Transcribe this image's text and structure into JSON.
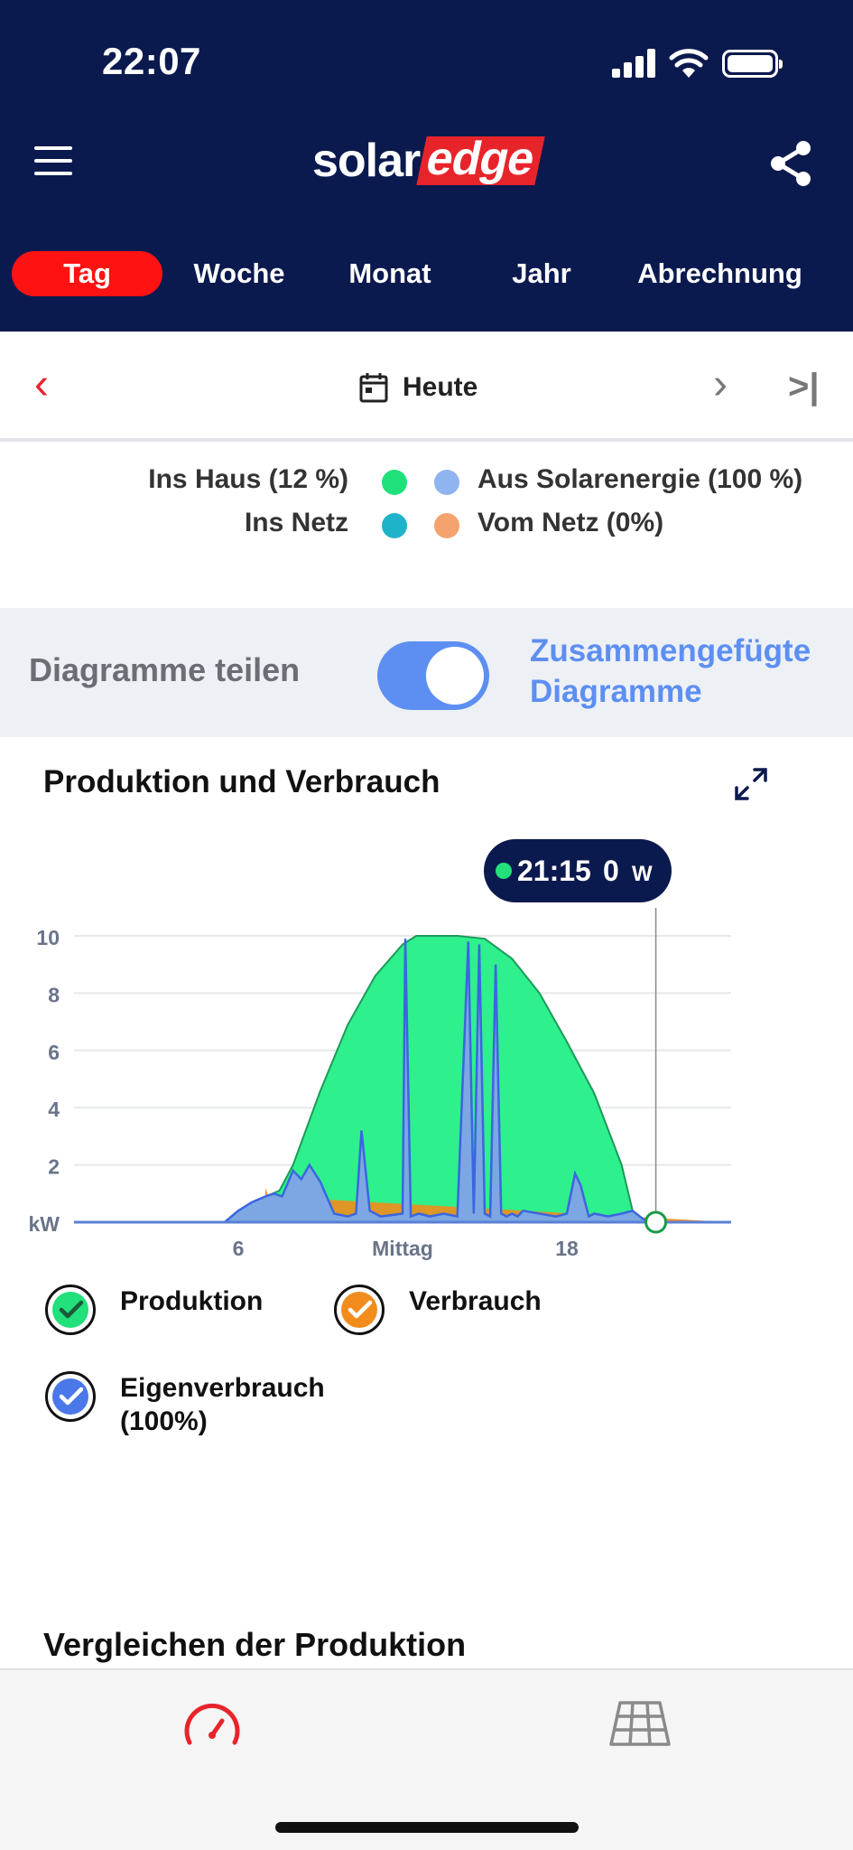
{
  "status": {
    "time": "22:07"
  },
  "header": {
    "logo_solar": "solar",
    "logo_edge": "edge",
    "tabs": [
      {
        "label": "Tag",
        "active": true
      },
      {
        "label": "Woche",
        "active": false
      },
      {
        "label": "Monat",
        "active": false
      },
      {
        "label": "Jahr",
        "active": false
      },
      {
        "label": "Abrechnung",
        "active": false
      }
    ]
  },
  "datebar": {
    "label": "Heute"
  },
  "energy_legend": {
    "row1_left": "Ins Haus (12 %)",
    "row1_right": "Aus Solarenergie (100 %)",
    "row2_left": "Ins Netz",
    "row2_right": "Vom Netz (0%)"
  },
  "toggle": {
    "label": "Diagramme teilen",
    "link": "Zusammengefügte Diagramme",
    "checked": true
  },
  "chart_section": {
    "title": "Produktion und Verbrauch"
  },
  "tooltip": {
    "time": "21:15",
    "value": "0",
    "unit": "W"
  },
  "legend": [
    {
      "label": "Produktion",
      "color": "#22e07a"
    },
    {
      "label": "Verbrauch",
      "color": "#f28c1c"
    },
    {
      "label": "Eigenverbrauch (100%)",
      "color": "#4a78e8"
    }
  ],
  "compare_section": {
    "title": "Vergleichen der Produktion"
  },
  "colors": {
    "header_bg": "#0b1a4e",
    "accent_red": "#e8242b",
    "tab_active": "#ff1212",
    "toggle_blue": "#5d8ff2",
    "production_fill": "#2ef08c",
    "self_fill": "#7da7e2"
  },
  "chart_data": {
    "type": "area",
    "ylabel": "kW",
    "ylim": [
      0,
      10
    ],
    "yticks": [
      "kW",
      "2",
      "4",
      "6",
      "8",
      "10"
    ],
    "xticks": [
      "6",
      "Mittag",
      "18"
    ],
    "xtick_hours": [
      6,
      12,
      18
    ],
    "xlim": [
      0,
      24
    ],
    "grid": true,
    "series": [
      {
        "name": "Produktion",
        "color": "#2ef08c",
        "x": [
          0,
          5.5,
          6,
          6.5,
          7,
          7.5,
          8,
          9,
          10,
          11,
          12,
          12.5,
          13,
          14,
          15,
          16,
          17,
          18,
          19,
          20,
          20.4,
          20.8,
          21.2,
          24
        ],
        "y": [
          0,
          0,
          0.4,
          0.7,
          0.9,
          1.1,
          2.0,
          4.6,
          6.9,
          8.6,
          9.7,
          10.0,
          10.0,
          10.0,
          9.9,
          9.2,
          8.0,
          6.3,
          4.5,
          2.0,
          0.4,
          0.1,
          0,
          0
        ]
      },
      {
        "name": "Eigenverbrauch (100%)",
        "color": "#7da7e2",
        "x": [
          0,
          5.5,
          6,
          6.5,
          7,
          7.3,
          7.6,
          8,
          8.3,
          8.6,
          9,
          9.5,
          10,
          10.3,
          10.5,
          10.8,
          11.2,
          12,
          12.1,
          12.3,
          12.6,
          13,
          13.5,
          14,
          14.4,
          14.6,
          14.8,
          15.0,
          15.2,
          15.4,
          15.6,
          15.8,
          16.0,
          16.2,
          16.4,
          17,
          17.6,
          18,
          18.3,
          18.5,
          18.8,
          19,
          19.5,
          20,
          20.4,
          20.8,
          21.2,
          24
        ],
        "y": [
          0,
          0,
          0.4,
          0.7,
          0.9,
          1.0,
          0.9,
          1.8,
          1.5,
          2.0,
          1.4,
          0.3,
          0.2,
          0.3,
          3.2,
          0.4,
          0.2,
          0.3,
          9.9,
          0.2,
          0.3,
          0.2,
          0.3,
          0.2,
          9.8,
          0.3,
          9.7,
          0.3,
          0.2,
          9.0,
          0.3,
          0.2,
          0.3,
          0.2,
          0.4,
          0.3,
          0.2,
          0.3,
          1.7,
          1.3,
          0.2,
          0.3,
          0.2,
          0.3,
          0.4,
          0.1,
          0,
          0
        ]
      },
      {
        "name": "Verbrauch",
        "color": "#f28c1c",
        "x": [
          0,
          6.9,
          7.0,
          7.1,
          24
        ],
        "y": [
          0,
          0,
          1.2,
          0.9,
          0
        ]
      }
    ],
    "cursor_hour": 21.25
  }
}
